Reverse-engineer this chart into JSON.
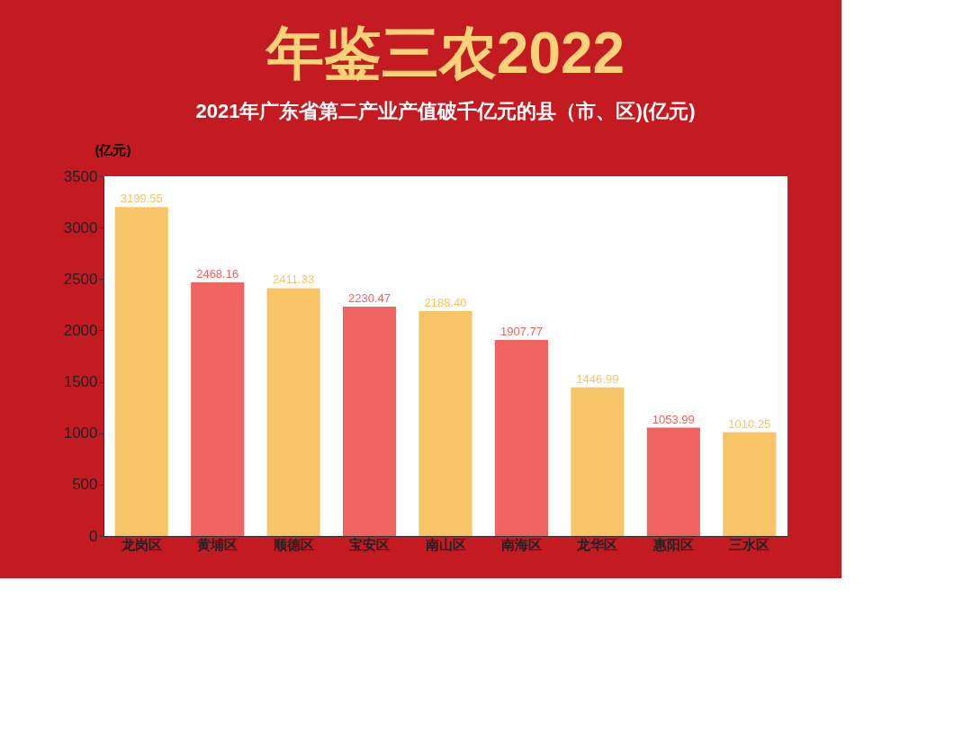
{
  "chart_data": {
    "type": "bar",
    "title": "年鉴三农2022",
    "subtitle": "2021年广东省第二产业产值破千亿元的县（市、区)(亿元)",
    "ylabel": "(亿元)",
    "categories": [
      "龙岗区",
      "黄埔区",
      "顺德区",
      "宝安区",
      "南山区",
      "南海区",
      "龙华区",
      "惠阳区",
      "三水区"
    ],
    "values": [
      3199.55,
      2468.16,
      2411.33,
      2230.47,
      2188.4,
      1907.77,
      1446.99,
      1053.99,
      1010.25
    ],
    "colors": [
      "#f7c566",
      "#ef6461",
      "#f7c566",
      "#ef6461",
      "#f7c566",
      "#ef6461",
      "#f7c566",
      "#ef6461",
      "#f7c566"
    ],
    "value_labels": [
      "3199.55",
      "2468.16",
      "2411.33",
      "2230.47",
      "2188.40",
      "1907.77",
      "1446.99",
      "1053.99",
      "1010.25"
    ],
    "ylim": [
      0,
      3500
    ],
    "yticks": [
      0,
      500,
      1000,
      1500,
      2000,
      2500,
      3000,
      3500
    ],
    "grid": false
  }
}
